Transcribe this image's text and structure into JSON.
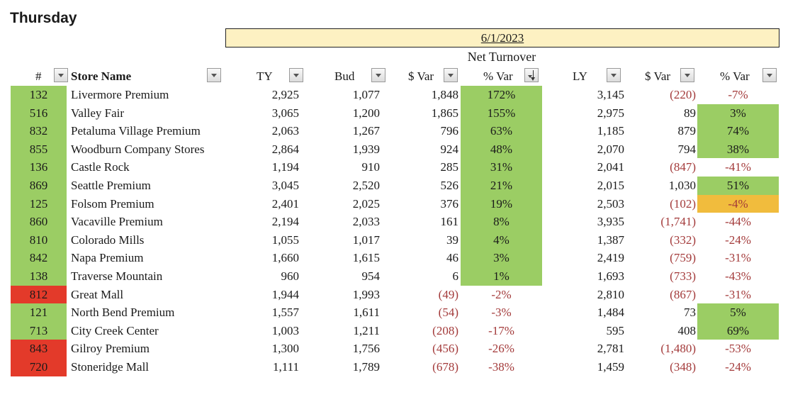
{
  "page_title": "Thursday",
  "date": "6/1/2023",
  "section_title": "Net Turnover",
  "headers": {
    "num": "#",
    "store": "Store Name",
    "ty": "TY",
    "bud": "Bud",
    "var_bud": "$ Var",
    "pct_bud": "% Var",
    "ly": "LY",
    "var_ly": "$ Var",
    "pct_ly": "% Var"
  },
  "colors": {
    "green": "#9bcd64",
    "red": "#e33a2a",
    "amber": "#f1bc3d",
    "negative_text": "#a33a3a",
    "date_band": "#fdf1c2"
  },
  "rows": [
    {
      "num": "132",
      "num_status": "green",
      "store": "Livermore Premium",
      "ty": "2,925",
      "bud": "1,077",
      "var": "1,848",
      "pct": "172%",
      "pct_status": "green",
      "ly": "3,145",
      "ly_var": "(220)",
      "ly_pct": "-7%",
      "ly_pct_status": "none"
    },
    {
      "num": "516",
      "num_status": "green",
      "store": "Valley Fair",
      "ty": "3,065",
      "bud": "1,200",
      "var": "1,865",
      "pct": "155%",
      "pct_status": "green",
      "ly": "2,975",
      "ly_var": "89",
      "ly_pct": "3%",
      "ly_pct_status": "green"
    },
    {
      "num": "832",
      "num_status": "green",
      "store": "Petaluma Village Premium",
      "ty": "2,063",
      "bud": "1,267",
      "var": "796",
      "pct": "63%",
      "pct_status": "green",
      "ly": "1,185",
      "ly_var": "879",
      "ly_pct": "74%",
      "ly_pct_status": "green"
    },
    {
      "num": "855",
      "num_status": "green",
      "store": "Woodburn Company Stores",
      "ty": "2,864",
      "bud": "1,939",
      "var": "924",
      "pct": "48%",
      "pct_status": "green",
      "ly": "2,070",
      "ly_var": "794",
      "ly_pct": "38%",
      "ly_pct_status": "green"
    },
    {
      "num": "136",
      "num_status": "green",
      "store": "Castle Rock",
      "ty": "1,194",
      "bud": "910",
      "var": "285",
      "pct": "31%",
      "pct_status": "green",
      "ly": "2,041",
      "ly_var": "(847)",
      "ly_pct": "-41%",
      "ly_pct_status": "none"
    },
    {
      "num": "869",
      "num_status": "green",
      "store": "Seattle Premium",
      "ty": "3,045",
      "bud": "2,520",
      "var": "526",
      "pct": "21%",
      "pct_status": "green",
      "ly": "2,015",
      "ly_var": "1,030",
      "ly_pct": "51%",
      "ly_pct_status": "green"
    },
    {
      "num": "125",
      "num_status": "green",
      "store": "Folsom Premium",
      "ty": "2,401",
      "bud": "2,025",
      "var": "376",
      "pct": "19%",
      "pct_status": "green",
      "ly": "2,503",
      "ly_var": "(102)",
      "ly_pct": "-4%",
      "ly_pct_status": "amber"
    },
    {
      "num": "860",
      "num_status": "green",
      "store": "Vacaville Premium",
      "ty": "2,194",
      "bud": "2,033",
      "var": "161",
      "pct": "8%",
      "pct_status": "green",
      "ly": "3,935",
      "ly_var": "(1,741)",
      "ly_pct": "-44%",
      "ly_pct_status": "none"
    },
    {
      "num": "810",
      "num_status": "green",
      "store": "Colorado Mills",
      "ty": "1,055",
      "bud": "1,017",
      "var": "39",
      "pct": "4%",
      "pct_status": "green",
      "ly": "1,387",
      "ly_var": "(332)",
      "ly_pct": "-24%",
      "ly_pct_status": "none"
    },
    {
      "num": "842",
      "num_status": "green",
      "store": "Napa Premium",
      "ty": "1,660",
      "bud": "1,615",
      "var": "46",
      "pct": "3%",
      "pct_status": "green",
      "ly": "2,419",
      "ly_var": "(759)",
      "ly_pct": "-31%",
      "ly_pct_status": "none"
    },
    {
      "num": "138",
      "num_status": "green",
      "store": "Traverse Mountain",
      "ty": "960",
      "bud": "954",
      "var": "6",
      "pct": "1%",
      "pct_status": "green",
      "ly": "1,693",
      "ly_var": "(733)",
      "ly_pct": "-43%",
      "ly_pct_status": "none"
    },
    {
      "num": "812",
      "num_status": "red",
      "store": "Great Mall",
      "ty": "1,944",
      "bud": "1,993",
      "var": "(49)",
      "pct": "-2%",
      "pct_status": "none",
      "ly": "2,810",
      "ly_var": "(867)",
      "ly_pct": "-31%",
      "ly_pct_status": "none"
    },
    {
      "num": "121",
      "num_status": "green",
      "store": "North Bend Premium",
      "ty": "1,557",
      "bud": "1,611",
      "var": "(54)",
      "pct": "-3%",
      "pct_status": "none",
      "ly": "1,484",
      "ly_var": "73",
      "ly_pct": "5%",
      "ly_pct_status": "green"
    },
    {
      "num": "713",
      "num_status": "green",
      "store": "City Creek Center",
      "ty": "1,003",
      "bud": "1,211",
      "var": "(208)",
      "pct": "-17%",
      "pct_status": "none",
      "ly": "595",
      "ly_var": "408",
      "ly_pct": "69%",
      "ly_pct_status": "green"
    },
    {
      "num": "843",
      "num_status": "red",
      "store": "Gilroy Premium",
      "ty": "1,300",
      "bud": "1,756",
      "var": "(456)",
      "pct": "-26%",
      "pct_status": "none",
      "ly": "2,781",
      "ly_var": "(1,480)",
      "ly_pct": "-53%",
      "ly_pct_status": "none"
    },
    {
      "num": "720",
      "num_status": "red",
      "store": "Stoneridge Mall",
      "ty": "1,111",
      "bud": "1,789",
      "var": "(678)",
      "pct": "-38%",
      "pct_status": "none",
      "ly": "1,459",
      "ly_var": "(348)",
      "ly_pct": "-24%",
      "ly_pct_status": "none"
    }
  ]
}
